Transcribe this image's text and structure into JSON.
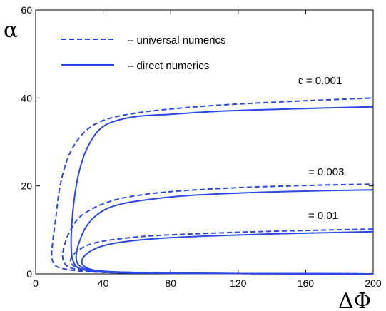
{
  "chart_data": {
    "type": "line",
    "xlabel": "ΔΦ",
    "ylabel": "α",
    "xlim": [
      0,
      200
    ],
    "ylim": [
      0,
      60
    ],
    "xticks": [
      0,
      40,
      80,
      120,
      160,
      200
    ],
    "yticks": [
      0,
      20,
      40,
      60
    ],
    "grid": false,
    "legend": {
      "placement": "top-left",
      "entries": [
        {
          "label": "– universal numerics",
          "style": "dashed"
        },
        {
          "label": "– direct numerics",
          "style": "solid"
        }
      ]
    },
    "color": "#2a48e6",
    "annotations": [
      "ε = 0.001",
      "= 0.003",
      "= 0.01"
    ],
    "curves": [
      {
        "epsilon": "0.001",
        "style": "dashed",
        "points": [
          [
            200,
            0
          ],
          [
            150,
            0.05
          ],
          [
            100,
            0.1
          ],
          [
            60,
            0.2
          ],
          [
            40,
            0.35
          ],
          [
            25,
            0.7
          ],
          [
            15,
            1.3
          ],
          [
            11,
            2.2
          ],
          [
            9.5,
            4
          ],
          [
            10,
            7
          ],
          [
            12,
            13
          ],
          [
            14,
            19
          ],
          [
            17,
            24
          ],
          [
            21,
            28
          ],
          [
            27,
            31.5
          ],
          [
            35,
            34
          ],
          [
            45,
            35.5
          ],
          [
            60,
            36.6
          ],
          [
            80,
            37.5
          ],
          [
            110,
            38.4
          ],
          [
            150,
            39.2
          ],
          [
            200,
            40
          ]
        ]
      },
      {
        "epsilon": "0.001",
        "style": "solid",
        "points": [
          [
            200,
            0
          ],
          [
            150,
            0.05
          ],
          [
            100,
            0.1
          ],
          [
            60,
            0.2
          ],
          [
            40,
            0.4
          ],
          [
            30,
            0.8
          ],
          [
            24,
            1.7
          ],
          [
            21.5,
            4
          ],
          [
            21,
            8
          ],
          [
            22,
            14
          ],
          [
            24,
            20
          ],
          [
            27,
            25
          ],
          [
            31,
            29
          ],
          [
            37,
            32.5
          ],
          [
            45,
            34.5
          ],
          [
            60,
            35.8
          ],
          [
            80,
            36.3
          ],
          [
            110,
            37
          ],
          [
            150,
            37.5
          ],
          [
            200,
            38
          ]
        ]
      },
      {
        "epsilon": "0.003",
        "style": "dashed",
        "points": [
          [
            200,
            0
          ],
          [
            150,
            0.05
          ],
          [
            100,
            0.1
          ],
          [
            60,
            0.2
          ],
          [
            40,
            0.4
          ],
          [
            28,
            0.8
          ],
          [
            20,
            1.5
          ],
          [
            17,
            2.5
          ],
          [
            16,
            4
          ],
          [
            17,
            6.5
          ],
          [
            20,
            9.5
          ],
          [
            25,
            12.5
          ],
          [
            32,
            14.5
          ],
          [
            42,
            16.2
          ],
          [
            55,
            17.5
          ],
          [
            80,
            18.7
          ],
          [
            120,
            19.6
          ],
          [
            160,
            20.1
          ],
          [
            200,
            20.4
          ]
        ]
      },
      {
        "epsilon": "0.003",
        "style": "solid",
        "points": [
          [
            200,
            0
          ],
          [
            150,
            0.05
          ],
          [
            100,
            0.12
          ],
          [
            60,
            0.3
          ],
          [
            40,
            0.6
          ],
          [
            30,
            1.1
          ],
          [
            25.5,
            2
          ],
          [
            24,
            3.5
          ],
          [
            24.5,
            5.5
          ],
          [
            26.5,
            8
          ],
          [
            30,
            10.8
          ],
          [
            35,
            13
          ],
          [
            42,
            14.8
          ],
          [
            52,
            16
          ],
          [
            65,
            16.8
          ],
          [
            90,
            17.8
          ],
          [
            130,
            18.5
          ],
          [
            170,
            18.9
          ],
          [
            200,
            19.1
          ]
        ]
      },
      {
        "epsilon": "0.01",
        "style": "dashed",
        "points": [
          [
            200,
            0
          ],
          [
            150,
            0.05
          ],
          [
            100,
            0.1
          ],
          [
            60,
            0.25
          ],
          [
            40,
            0.5
          ],
          [
            30,
            0.9
          ],
          [
            24,
            1.5
          ],
          [
            21,
            2.5
          ],
          [
            21,
            3.6
          ],
          [
            24,
            5
          ],
          [
            30,
            6.4
          ],
          [
            38,
            7.3
          ],
          [
            50,
            8
          ],
          [
            70,
            8.7
          ],
          [
            100,
            9.2
          ],
          [
            140,
            9.7
          ],
          [
            200,
            10.2
          ]
        ]
      },
      {
        "epsilon": "0.01",
        "style": "solid",
        "points": [
          [
            200,
            0
          ],
          [
            150,
            0.05
          ],
          [
            100,
            0.12
          ],
          [
            60,
            0.3
          ],
          [
            40,
            0.6
          ],
          [
            32,
            1.1
          ],
          [
            28,
            2
          ],
          [
            27.5,
            3.2
          ],
          [
            30,
            4.5
          ],
          [
            35,
            5.7
          ],
          [
            42,
            6.6
          ],
          [
            52,
            7.3
          ],
          [
            70,
            8
          ],
          [
            100,
            8.6
          ],
          [
            140,
            9.1
          ],
          [
            200,
            9.6
          ]
        ]
      }
    ]
  }
}
